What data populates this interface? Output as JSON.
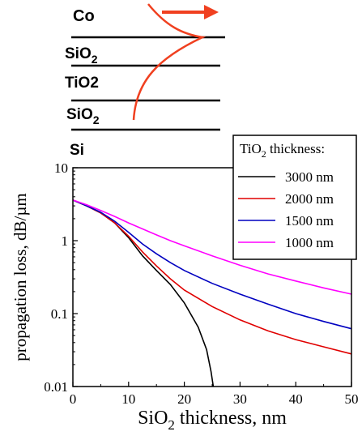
{
  "schematic": {
    "layers": [
      {
        "label": "Co",
        "sub": "",
        "after": "",
        "color": "#333399"
      },
      {
        "label": "SiO",
        "sub": "2",
        "after": "",
        "color": "#1a9a1a"
      },
      {
        "label": "TiO2",
        "sub": "",
        "after": "",
        "color": "#1a9a1a"
      },
      {
        "label": "SiO",
        "sub": "2",
        "after": "",
        "color": "#1a9a1a"
      },
      {
        "label": "Si",
        "sub": "",
        "after": "",
        "color": "#1a9a1a"
      }
    ],
    "mode_color": "#f04020",
    "arrow_color": "#f04020"
  },
  "chart_data": {
    "type": "line",
    "xlabel": {
      "pre": "SiO",
      "sub": "2",
      "post": " thickness, nm"
    },
    "ylabel": "propagation loss, dB/µm",
    "xlim": [
      0,
      50
    ],
    "ylim": [
      0.01,
      10
    ],
    "yscale": "log",
    "xticks": [
      0,
      10,
      20,
      30,
      40,
      50
    ],
    "xtick_labels": [
      "0",
      "10",
      "20",
      "30",
      "40",
      "50"
    ],
    "yticks": [
      0.01,
      0.1,
      1,
      10
    ],
    "ytick_labels": [
      "0.01",
      "0.1",
      "1",
      "10"
    ],
    "grid": false,
    "legend": {
      "position": "top-right",
      "title": {
        "pre": "TiO",
        "sub": "2",
        "post": " thickness:"
      }
    },
    "series": [
      {
        "name": "3000 nm",
        "color": "#000000",
        "x": [
          0,
          2.5,
          5,
          7.5,
          10,
          12.5,
          15,
          17.5,
          20,
          22.5,
          24,
          24.8,
          25.2
        ],
        "y": [
          3.6,
          3.0,
          2.4,
          1.75,
          1.1,
          0.62,
          0.39,
          0.25,
          0.14,
          0.065,
          0.032,
          0.016,
          0.01
        ]
      },
      {
        "name": "2000 nm",
        "color": "#e00000",
        "x": [
          0,
          2.5,
          5,
          7.5,
          10,
          12.5,
          15,
          17.5,
          20,
          25,
          30,
          35,
          40,
          45,
          50
        ],
        "y": [
          3.6,
          3.0,
          2.4,
          1.75,
          1.15,
          0.7,
          0.45,
          0.3,
          0.21,
          0.125,
          0.082,
          0.058,
          0.044,
          0.035,
          0.028
        ]
      },
      {
        "name": "1500 nm",
        "color": "#0000c0",
        "x": [
          0,
          2.5,
          5,
          7.5,
          10,
          12.5,
          15,
          17.5,
          20,
          25,
          30,
          35,
          40,
          45,
          50
        ],
        "y": [
          3.6,
          3.0,
          2.45,
          1.85,
          1.3,
          0.9,
          0.66,
          0.5,
          0.39,
          0.26,
          0.185,
          0.135,
          0.1,
          0.078,
          0.062
        ]
      },
      {
        "name": "1000 nm",
        "color": "#ff00ff",
        "x": [
          0,
          2.5,
          5,
          7.5,
          10,
          12.5,
          15,
          17.5,
          20,
          25,
          30,
          35,
          40,
          45,
          50
        ],
        "y": [
          3.6,
          3.1,
          2.6,
          2.15,
          1.75,
          1.45,
          1.2,
          1.0,
          0.85,
          0.62,
          0.46,
          0.35,
          0.28,
          0.225,
          0.185
        ]
      }
    ]
  }
}
